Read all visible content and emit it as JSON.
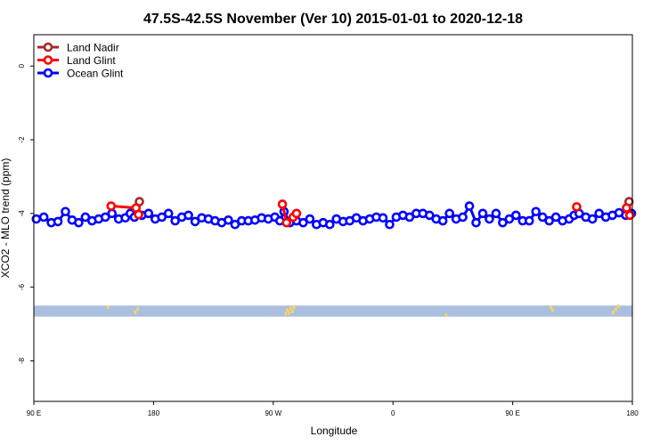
{
  "chart_data": {
    "type": "line",
    "title": "47.5S-42.5S November (Ver 10)   2015-01-01 to 2020-12-18",
    "xlabel": "Longitude",
    "ylabel": "XCO2 - MLO trend (ppm)",
    "xlim": [
      90,
      450
    ],
    "ylim": [
      -9.1,
      0.85
    ],
    "x_ticks": [
      {
        "value": 90,
        "label": "90 E"
      },
      {
        "value": 162,
        "label": "180"
      },
      {
        "value": 234,
        "label": "90 W"
      },
      {
        "value": 306,
        "label": "0"
      },
      {
        "value": 378,
        "label": "90 E"
      },
      {
        "value": 450,
        "label": "180"
      }
    ],
    "y_ticks": [
      {
        "value": 0,
        "label": "0"
      },
      {
        "value": -2,
        "label": "-2"
      },
      {
        "value": -4,
        "label": "-4"
      },
      {
        "value": -6,
        "label": "-6"
      },
      {
        "value": -8,
        "label": "-8"
      }
    ],
    "legend": {
      "position": "top-left",
      "entries": [
        {
          "name": "Land Nadir",
          "color": "#a52a2a"
        },
        {
          "name": "Land Glint",
          "color": "#ff0000"
        },
        {
          "name": "Ocean Glint",
          "color": "#0000ff"
        }
      ]
    },
    "land_band": {
      "y_top": -6.5,
      "y_bottom": -6.8,
      "color": "#a9bfdd",
      "land_color": "#f5d36e"
    },
    "land_marks": [
      {
        "x": 134.5,
        "y": -6.55
      },
      {
        "x": 151.0,
        "y": -6.68
      },
      {
        "x": 152.5,
        "y": -6.6
      },
      {
        "x": 241.5,
        "y": -6.72
      },
      {
        "x": 242.5,
        "y": -6.62
      },
      {
        "x": 243.5,
        "y": -6.7
      },
      {
        "x": 244.5,
        "y": -6.58
      },
      {
        "x": 245.5,
        "y": -6.66
      },
      {
        "x": 246.5,
        "y": -6.55
      },
      {
        "x": 338.0,
        "y": -6.76
      },
      {
        "x": 401.0,
        "y": -6.55
      },
      {
        "x": 402.0,
        "y": -6.63
      },
      {
        "x": 438.5,
        "y": -6.68
      },
      {
        "x": 440.0,
        "y": -6.6
      },
      {
        "x": 441.5,
        "y": -6.52
      }
    ],
    "series": [
      {
        "name": "Land Nadir",
        "color": "#a52a2a",
        "segments": [
          [
            {
              "x": 153.5,
              "y": -3.68
            }
          ],
          [
            {
              "x": 448.0,
              "y": -3.68
            }
          ]
        ]
      },
      {
        "name": "Land Glint",
        "color": "#ff0000",
        "segments": [
          [
            {
              "x": 136.5,
              "y": -3.8
            },
            {
              "x": 151.5,
              "y": -3.85
            },
            {
              "x": 153.0,
              "y": -4.03
            }
          ],
          [
            {
              "x": 239.5,
              "y": -3.75
            },
            {
              "x": 242.0,
              "y": -4.25
            },
            {
              "x": 246.0,
              "y": -4.1
            },
            {
              "x": 248.0,
              "y": -4.0
            }
          ],
          [
            {
              "x": 416.5,
              "y": -3.82
            }
          ],
          [
            {
              "x": 446.5,
              "y": -3.85
            },
            {
              "x": 448.5,
              "y": -4.05
            }
          ]
        ]
      },
      {
        "name": "Ocean Glint",
        "color": "#0000ff",
        "segments": [
          [
            {
              "x": 91.5,
              "y": -4.15
            },
            {
              "x": 96.0,
              "y": -4.1
            },
            {
              "x": 100.5,
              "y": -4.25
            },
            {
              "x": 104.5,
              "y": -4.22
            },
            {
              "x": 109.0,
              "y": -3.95
            },
            {
              "x": 113.0,
              "y": -4.18
            },
            {
              "x": 117.0,
              "y": -4.25
            },
            {
              "x": 121.0,
              "y": -4.1
            },
            {
              "x": 125.0,
              "y": -4.2
            },
            {
              "x": 129.0,
              "y": -4.15
            },
            {
              "x": 133.0,
              "y": -4.1
            },
            {
              "x": 137.0,
              "y": -4.0
            },
            {
              "x": 141.0,
              "y": -4.15
            },
            {
              "x": 145.0,
              "y": -4.12
            },
            {
              "x": 148.0,
              "y": -4.0
            },
            {
              "x": 150.5,
              "y": -4.1
            },
            {
              "x": 155.0,
              "y": -4.05
            },
            {
              "x": 159.0,
              "y": -4.0
            },
            {
              "x": 163.0,
              "y": -4.15
            },
            {
              "x": 167.0,
              "y": -4.1
            },
            {
              "x": 171.0,
              "y": -4.0
            },
            {
              "x": 175.0,
              "y": -4.2
            },
            {
              "x": 179.0,
              "y": -4.1
            },
            {
              "x": 183.0,
              "y": -4.05
            },
            {
              "x": 187.0,
              "y": -4.22
            },
            {
              "x": 191.0,
              "y": -4.12
            },
            {
              "x": 195.0,
              "y": -4.15
            },
            {
              "x": 199.0,
              "y": -4.2
            },
            {
              "x": 203.0,
              "y": -4.25
            },
            {
              "x": 207.0,
              "y": -4.18
            },
            {
              "x": 211.0,
              "y": -4.3
            },
            {
              "x": 215.0,
              "y": -4.2
            },
            {
              "x": 219.0,
              "y": -4.2
            },
            {
              "x": 223.0,
              "y": -4.18
            },
            {
              "x": 227.0,
              "y": -4.12
            },
            {
              "x": 231.0,
              "y": -4.15
            },
            {
              "x": 235.0,
              "y": -4.1
            },
            {
              "x": 238.0,
              "y": -4.2
            },
            {
              "x": 240.5,
              "y": -3.95
            },
            {
              "x": 244.0,
              "y": -4.25
            },
            {
              "x": 248.0,
              "y": -4.2
            },
            {
              "x": 252.0,
              "y": -4.25
            },
            {
              "x": 256.0,
              "y": -4.15
            },
            {
              "x": 260.0,
              "y": -4.3
            },
            {
              "x": 264.0,
              "y": -4.25
            },
            {
              "x": 268.0,
              "y": -4.3
            },
            {
              "x": 272.0,
              "y": -4.15
            },
            {
              "x": 276.0,
              "y": -4.22
            },
            {
              "x": 280.0,
              "y": -4.2
            },
            {
              "x": 284.0,
              "y": -4.12
            },
            {
              "x": 288.0,
              "y": -4.2
            },
            {
              "x": 292.0,
              "y": -4.15
            },
            {
              "x": 296.0,
              "y": -4.1
            },
            {
              "x": 300.0,
              "y": -4.12
            },
            {
              "x": 304.0,
              "y": -4.3
            },
            {
              "x": 308.0,
              "y": -4.1
            },
            {
              "x": 312.0,
              "y": -4.05
            },
            {
              "x": 316.0,
              "y": -4.1
            },
            {
              "x": 320.0,
              "y": -4.0
            },
            {
              "x": 324.0,
              "y": -4.0
            },
            {
              "x": 328.0,
              "y": -4.05
            },
            {
              "x": 332.0,
              "y": -4.15
            },
            {
              "x": 336.0,
              "y": -4.2
            },
            {
              "x": 340.0,
              "y": -4.0
            },
            {
              "x": 344.0,
              "y": -4.15
            },
            {
              "x": 348.0,
              "y": -4.1
            },
            {
              "x": 352.0,
              "y": -3.8
            },
            {
              "x": 356.0,
              "y": -4.25
            },
            {
              "x": 360.0,
              "y": -4.0
            },
            {
              "x": 364.0,
              "y": -4.15
            },
            {
              "x": 368.0,
              "y": -4.0
            },
            {
              "x": 372.0,
              "y": -4.25
            },
            {
              "x": 376.0,
              "y": -4.15
            },
            {
              "x": 380.0,
              "y": -4.05
            },
            {
              "x": 384.0,
              "y": -4.2
            },
            {
              "x": 388.0,
              "y": -4.2
            },
            {
              "x": 392.0,
              "y": -3.95
            },
            {
              "x": 396.0,
              "y": -4.1
            },
            {
              "x": 400.0,
              "y": -4.2
            },
            {
              "x": 404.0,
              "y": -4.1
            },
            {
              "x": 408.0,
              "y": -4.2
            },
            {
              "x": 412.0,
              "y": -4.15
            },
            {
              "x": 415.0,
              "y": -4.05
            },
            {
              "x": 418.0,
              "y": -4.0
            },
            {
              "x": 422.0,
              "y": -4.1
            },
            {
              "x": 426.0,
              "y": -4.15
            },
            {
              "x": 430.0,
              "y": -4.0
            },
            {
              "x": 434.0,
              "y": -4.1
            },
            {
              "x": 438.0,
              "y": -4.05
            },
            {
              "x": 442.0,
              "y": -3.98
            },
            {
              "x": 446.0,
              "y": -4.05
            },
            {
              "x": 449.5,
              "y": -4.0
            }
          ]
        ]
      }
    ]
  }
}
